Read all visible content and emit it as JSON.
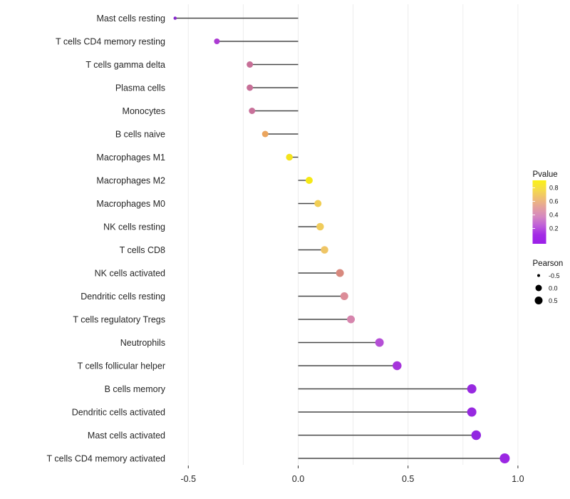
{
  "chart_data": {
    "type": "lollipop",
    "orientation": "horizontal",
    "baseline_x": 0,
    "xlim": [
      -0.62,
      1.04
    ],
    "x_ticks": [
      {
        "label": "-0.5",
        "value": -0.5
      },
      {
        "label": "0.0",
        "value": 0.0
      },
      {
        "label": "0.5",
        "value": 0.5
      },
      {
        "label": "1.0",
        "value": 1.0
      }
    ],
    "minor_grid_values": [
      -0.25,
      0.25,
      0.75
    ],
    "grid": "vertical-only",
    "gridline_color": "#ECECEC",
    "stick_color": "#474747",
    "axis_text_color": "#262626",
    "rows": [
      {
        "label": "Mast cells resting",
        "pearson": -0.56,
        "dot_color": "#8627CC",
        "dot_diameter": 4.5
      },
      {
        "label": "T cells CD4 memory resting",
        "pearson": -0.37,
        "dot_color": "#AC3BD3",
        "dot_diameter": 8
      },
      {
        "label": "T cells gamma delta",
        "pearson": -0.22,
        "dot_color": "#C76F97",
        "dot_diameter": 9
      },
      {
        "label": "Plasma cells",
        "pearson": -0.22,
        "dot_color": "#C76F97",
        "dot_diameter": 9
      },
      {
        "label": "Monocytes",
        "pearson": -0.21,
        "dot_color": "#C8719A",
        "dot_diameter": 9
      },
      {
        "label": "B cells naive",
        "pearson": -0.15,
        "dot_color": "#EBA55E",
        "dot_diameter": 9
      },
      {
        "label": "Macrophages M1",
        "pearson": -0.04,
        "dot_color": "#F4E31C",
        "dot_diameter": 9.5
      },
      {
        "label": "Macrophages M2",
        "pearson": 0.05,
        "dot_color": "#F5E816",
        "dot_diameter": 10
      },
      {
        "label": "Macrophages M0",
        "pearson": 0.09,
        "dot_color": "#F1CE55",
        "dot_diameter": 10
      },
      {
        "label": "NK cells resting",
        "pearson": 0.1,
        "dot_color": "#F0CC5C",
        "dot_diameter": 10.5
      },
      {
        "label": "T cells CD8",
        "pearson": 0.12,
        "dot_color": "#EFC565",
        "dot_diameter": 10.5
      },
      {
        "label": "NK cells activated",
        "pearson": 0.19,
        "dot_color": "#D8897E",
        "dot_diameter": 11
      },
      {
        "label": "Dendritic cells resting",
        "pearson": 0.21,
        "dot_color": "#DC8C98",
        "dot_diameter": 11
      },
      {
        "label": "T cells regulatory  Tregs",
        "pearson": 0.24,
        "dot_color": "#D685AD",
        "dot_diameter": 11
      },
      {
        "label": "Neutrophils",
        "pearson": 0.37,
        "dot_color": "#B54FD6",
        "dot_diameter": 12
      },
      {
        "label": "T cells follicular helper",
        "pearson": 0.45,
        "dot_color": "#A634DB",
        "dot_diameter": 12.5
      },
      {
        "label": "B cells memory",
        "pearson": 0.79,
        "dot_color": "#9729E0",
        "dot_diameter": 13
      },
      {
        "label": "Dendritic cells activated",
        "pearson": 0.79,
        "dot_color": "#9729E0",
        "dot_diameter": 13
      },
      {
        "label": "Mast cells activated",
        "pearson": 0.81,
        "dot_color": "#9227E1",
        "dot_diameter": 13.5
      },
      {
        "label": "T cells CD4 memory activated",
        "pearson": 0.94,
        "dot_color": "#9B27E3",
        "dot_diameter": 14
      }
    ],
    "legend": {
      "pvalue": {
        "title": "Pvalue",
        "tick_labels": [
          "0.8",
          "0.6",
          "0.4",
          "0.2"
        ],
        "gradient_top_to_bottom": [
          "#FBF116",
          "#F5DC49",
          "#EFBE74",
          "#E4A09E",
          "#D588C0",
          "#BE5FD9",
          "#A32BE6",
          "#9B1FE8"
        ]
      },
      "pearson": {
        "title": "Pearson",
        "dot_color": "#000000",
        "items": [
          {
            "label": "-0.5",
            "dot_diameter": 4
          },
          {
            "label": "0.0",
            "dot_diameter": 9
          },
          {
            "label": "0.5",
            "dot_diameter": 11
          }
        ]
      }
    }
  }
}
